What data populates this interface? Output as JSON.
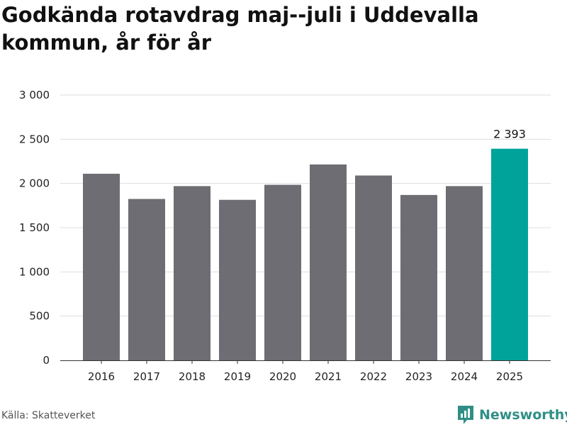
{
  "title": "Godkända rotavdrag maj--juli i Uddevalla kommun, år för år",
  "source": "Källa: Skatteverket",
  "brand": {
    "name": "Newsworthy",
    "icon": "newsworthy-logo-icon"
  },
  "colors": {
    "bar": "#6e6d73",
    "highlight": "#00a39a",
    "grid": "#dddddd"
  },
  "chart_data": {
    "type": "bar",
    "categories": [
      "2016",
      "2017",
      "2018",
      "2019",
      "2020",
      "2021",
      "2022",
      "2023",
      "2024",
      "2025"
    ],
    "values": [
      2110,
      1825,
      1970,
      1815,
      1985,
      2215,
      2090,
      1870,
      1970,
      2393
    ],
    "highlight_index": 9,
    "data_labels": [
      {
        "index": 9,
        "text": "2 393"
      }
    ],
    "yticks": [
      0,
      500,
      1000,
      1500,
      2000,
      2500,
      3000
    ],
    "ytick_labels": [
      "0",
      "500",
      "1 000",
      "1 500",
      "2 000",
      "2 500",
      "3 000"
    ],
    "ylim": [
      0,
      3000
    ],
    "grid": true,
    "xlabel": "",
    "ylabel": ""
  }
}
